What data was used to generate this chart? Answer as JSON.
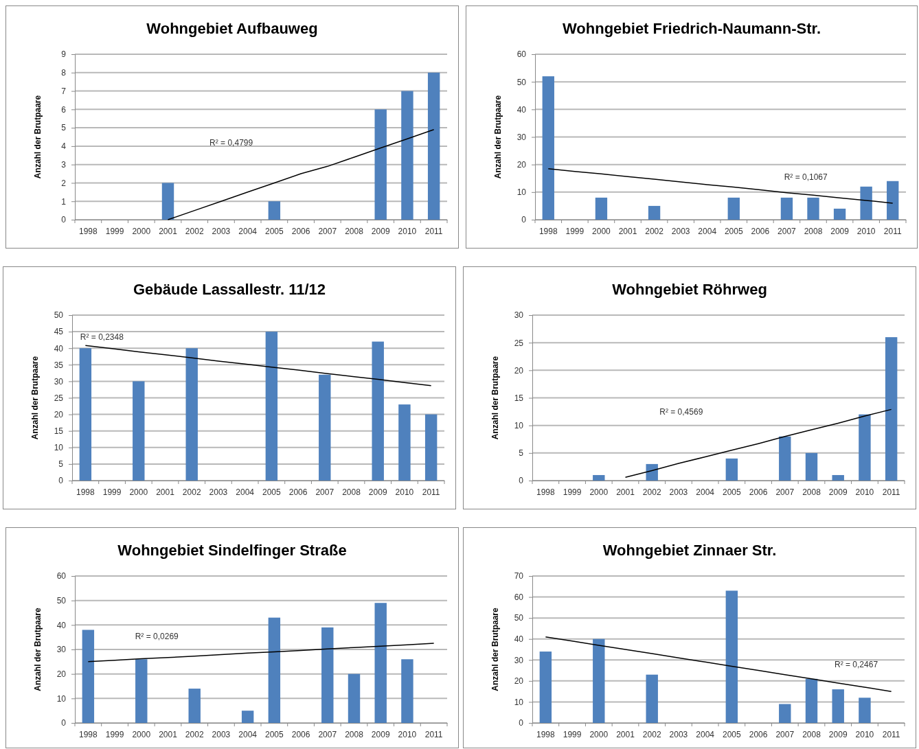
{
  "chart_data": [
    {
      "type": "bar",
      "title": "Wohngebiet Aufbauweg",
      "ylabel": "Anzahl der Brutpaare",
      "categories": [
        "1998",
        "1999",
        "2000",
        "2001",
        "2002",
        "2003",
        "2004",
        "2005",
        "2006",
        "2007",
        "2008",
        "2009",
        "2010",
        "2011"
      ],
      "ylim": [
        0,
        9
      ],
      "yticks": [
        0,
        1,
        2,
        3,
        4,
        5,
        6,
        7,
        8,
        9
      ],
      "grid": "y",
      "series": [
        {
          "color": "#4f81bd",
          "values": [
            0,
            0,
            0,
            2,
            0,
            0,
            0,
            1,
            0,
            0,
            0,
            6,
            7,
            8
          ]
        },
        {
          "type": "line",
          "color": "#000000",
          "values": [
            null,
            null,
            null,
            0,
            0.5,
            1,
            1.5,
            2,
            2.5,
            2.9,
            3.4,
            3.9,
            4.4,
            4.9
          ]
        }
      ],
      "annotations": [
        "R² = 0,4799"
      ]
    },
    {
      "type": "bar",
      "title": "Wohngebiet Friedrich-Naumann-Str.",
      "ylabel": "Anzahl der Brutpaare",
      "categories": [
        "1998",
        "1999",
        "2000",
        "2001",
        "2002",
        "2003",
        "2004",
        "2005",
        "2006",
        "2007",
        "2008",
        "2009",
        "2010",
        "2011"
      ],
      "ylim": [
        0,
        60
      ],
      "yticks": [
        0,
        10,
        20,
        30,
        40,
        50,
        60
      ],
      "grid": "y",
      "series": [
        {
          "color": "#4f81bd",
          "values": [
            52,
            0,
            8,
            0,
            5,
            0,
            0,
            8,
            0,
            8,
            8,
            4,
            12,
            14
          ]
        },
        {
          "type": "line",
          "color": "#000000",
          "values": [
            18.5,
            17.5,
            16.6,
            15.6,
            14.7,
            13.7,
            12.7,
            11.8,
            10.8,
            9.8,
            8.9,
            7.9,
            7,
            6
          ]
        }
      ],
      "annotations": [
        "R² = 0,1067"
      ]
    },
    {
      "type": "bar",
      "title": "Gebäude Lassallestr. 11/12",
      "ylabel": "Anzahl der Brutpaare",
      "categories": [
        "1998",
        "1999",
        "2000",
        "2001",
        "2002",
        "2003",
        "2004",
        "2005",
        "2006",
        "2007",
        "2008",
        "2009",
        "2010",
        "2011"
      ],
      "ylim": [
        0,
        50
      ],
      "yticks": [
        0,
        5,
        10,
        15,
        20,
        25,
        30,
        35,
        40,
        45,
        50
      ],
      "grid": "y",
      "series": [
        {
          "color": "#4f81bd",
          "values": [
            40,
            0,
            30,
            0,
            40,
            0,
            0,
            45,
            0,
            32,
            0,
            42,
            23,
            20
          ]
        },
        {
          "type": "line",
          "color": "#000000",
          "values": [
            40.8,
            39.9,
            38.9,
            38,
            37.1,
            36.1,
            35.2,
            34.3,
            33.4,
            32.4,
            31.5,
            30.6,
            29.6,
            28.7
          ]
        }
      ],
      "annotations": [
        "R² = 0,2348"
      ]
    },
    {
      "type": "bar",
      "title": "Wohngebiet Röhrweg",
      "ylabel": "Anzahl der Brutpaare",
      "categories": [
        "1998",
        "1999",
        "2000",
        "2001",
        "2002",
        "2003",
        "2004",
        "2005",
        "2006",
        "2007",
        "2008",
        "2009",
        "2010",
        "2011"
      ],
      "ylim": [
        0,
        30
      ],
      "yticks": [
        0,
        5,
        10,
        15,
        20,
        25,
        30
      ],
      "grid": "y",
      "series": [
        {
          "color": "#4f81bd",
          "values": [
            0,
            0,
            1,
            0,
            3,
            0,
            0,
            4,
            0,
            8,
            5,
            1,
            12,
            26
          ]
        },
        {
          "type": "line",
          "color": "#000000",
          "values": [
            null,
            null,
            null,
            0.6,
            1.8,
            3.1,
            4.3,
            5.5,
            6.7,
            8,
            9.2,
            10.4,
            11.7,
            12.9
          ]
        }
      ],
      "annotations": [
        "R² = 0,4569"
      ]
    },
    {
      "type": "bar",
      "title": "Wohngebiet Sindelfinger Straße",
      "ylabel": "Anzahl der Brutpaare",
      "categories": [
        "1998",
        "1999",
        "2000",
        "2001",
        "2002",
        "2003",
        "2004",
        "2005",
        "2006",
        "2007",
        "2008",
        "2009",
        "2010",
        "2011"
      ],
      "ylim": [
        0,
        60
      ],
      "yticks": [
        0,
        10,
        20,
        30,
        40,
        50,
        60
      ],
      "grid": "y",
      "series": [
        {
          "color": "#4f81bd",
          "values": [
            38,
            0,
            26,
            0,
            14,
            0,
            5,
            43,
            0,
            39,
            20,
            49,
            26,
            0
          ]
        },
        {
          "type": "line",
          "color": "#000000",
          "values": [
            25,
            25.6,
            26.2,
            26.7,
            27.3,
            27.9,
            28.5,
            29,
            29.6,
            30.2,
            30.8,
            31.3,
            31.9,
            32.5
          ]
        }
      ],
      "annotations": [
        "R² = 0,0269"
      ]
    },
    {
      "type": "bar",
      "title": "Wohngebiet Zinnaer Str.",
      "ylabel": "Anzahl der Brutpaare",
      "categories": [
        "1998",
        "1999",
        "2000",
        "2001",
        "2002",
        "2003",
        "2004",
        "2005",
        "2006",
        "2007",
        "2008",
        "2009",
        "2010",
        "2011"
      ],
      "ylim": [
        0,
        70
      ],
      "yticks": [
        0,
        10,
        20,
        30,
        40,
        50,
        60,
        70
      ],
      "grid": "y",
      "series": [
        {
          "color": "#4f81bd",
          "values": [
            34,
            0,
            40,
            0,
            23,
            0,
            0,
            63,
            0,
            9,
            21,
            16,
            12,
            0
          ]
        },
        {
          "type": "line",
          "color": "#000000",
          "values": [
            41,
            39,
            37,
            35,
            33,
            31,
            29,
            27,
            25,
            23,
            21,
            19,
            17,
            15
          ]
        }
      ],
      "annotations": [
        "R² = 0,2467"
      ]
    }
  ]
}
